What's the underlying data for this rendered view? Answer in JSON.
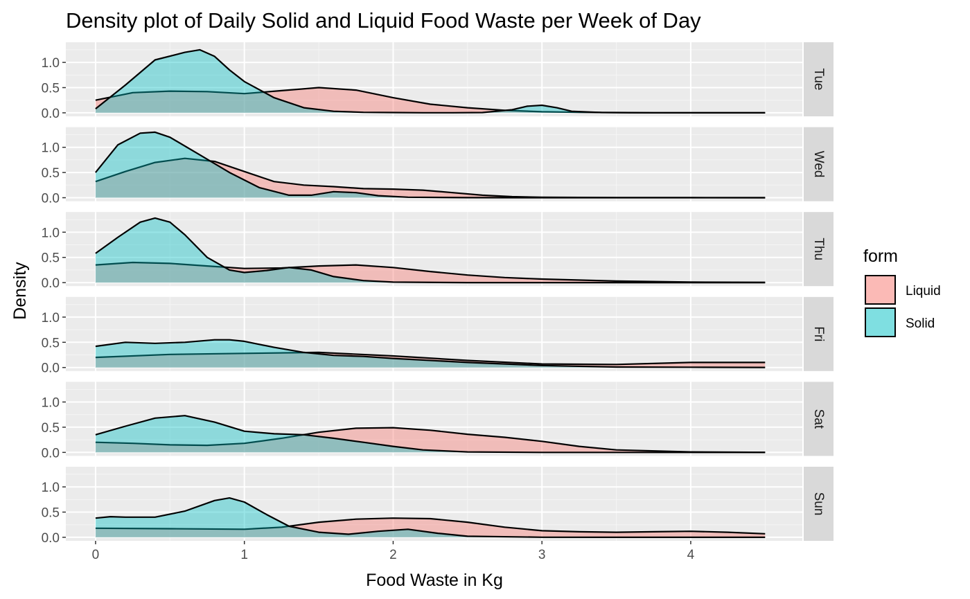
{
  "chart_data": {
    "type": "area",
    "subtype": "faceted density",
    "title": "Density plot of Daily Solid and Liquid Food Waste per Week of Day",
    "xlabel": "Food Waste in Kg",
    "ylabel": "Density",
    "xlim": [
      -0.2,
      4.75
    ],
    "ylim": [
      -0.07,
      1.4
    ],
    "x_ticks": [
      0,
      1,
      2,
      3,
      4
    ],
    "y_ticks": [
      0.0,
      0.5,
      1.0
    ],
    "x_tick_labels": [
      "0",
      "1",
      "2",
      "3",
      "4"
    ],
    "y_tick_labels": [
      "0.0",
      "0.5",
      "1.0"
    ],
    "grid": true,
    "legend": {
      "title": "form",
      "position": "right",
      "entries": [
        {
          "label": "Liquid",
          "color": "#F8766D"
        },
        {
          "label": "Solid",
          "color": "#00BFC4"
        }
      ]
    },
    "fill_alpha": 0.4,
    "panel_background": "#EBEBEB",
    "strip_background": "#D9D9D9",
    "facets": [
      {
        "label": "Tue",
        "series": [
          {
            "name": "Liquid",
            "x": [
              0,
              0.25,
              0.5,
              0.75,
              1,
              1.25,
              1.5,
              1.75,
              2,
              2.25,
              2.5,
              2.75,
              3,
              3.25,
              3.5,
              3.75,
              4,
              4.25,
              4.5
            ],
            "y": [
              0.25,
              0.4,
              0.43,
              0.42,
              0.38,
              0.44,
              0.5,
              0.45,
              0.3,
              0.17,
              0.1,
              0.05,
              0.02,
              0.01,
              0.005,
              0.002,
              0.001,
              0,
              0
            ]
          },
          {
            "name": "Solid",
            "x": [
              0,
              0.2,
              0.4,
              0.6,
              0.7,
              0.8,
              0.9,
              1,
              1.2,
              1.4,
              1.6,
              1.8,
              2,
              2.2,
              2.4,
              2.6,
              2.8,
              2.9,
              3,
              3.1,
              3.2,
              3.4,
              3.6,
              4,
              4.5
            ],
            "y": [
              0.08,
              0.55,
              1.05,
              1.2,
              1.25,
              1.12,
              0.85,
              0.62,
              0.3,
              0.1,
              0.03,
              0.01,
              0.005,
              0.002,
              0.001,
              0.005,
              0.06,
              0.13,
              0.15,
              0.1,
              0.03,
              0.005,
              0.001,
              0,
              0
            ]
          }
        ]
      },
      {
        "label": "Wed",
        "series": [
          {
            "name": "Liquid",
            "x": [
              0,
              0.2,
              0.4,
              0.6,
              0.8,
              1,
              1.2,
              1.4,
              1.6,
              1.8,
              2,
              2.2,
              2.4,
              2.6,
              2.8,
              3,
              3.5,
              4,
              4.5
            ],
            "y": [
              0.32,
              0.52,
              0.7,
              0.78,
              0.72,
              0.52,
              0.32,
              0.25,
              0.22,
              0.18,
              0.17,
              0.15,
              0.1,
              0.05,
              0.02,
              0.01,
              0.003,
              0.001,
              0
            ]
          },
          {
            "name": "Solid",
            "x": [
              0,
              0.15,
              0.3,
              0.4,
              0.5,
              0.7,
              0.9,
              1.1,
              1.3,
              1.45,
              1.6,
              1.75,
              1.9,
              2.1,
              2.5,
              3,
              4,
              4.5
            ],
            "y": [
              0.5,
              1.05,
              1.28,
              1.3,
              1.2,
              0.85,
              0.5,
              0.2,
              0.05,
              0.05,
              0.12,
              0.1,
              0.04,
              0.01,
              0.001,
              0,
              0,
              0
            ]
          }
        ]
      },
      {
        "label": "Thu",
        "series": [
          {
            "name": "Liquid",
            "x": [
              0,
              0.25,
              0.5,
              0.75,
              1,
              1.25,
              1.5,
              1.75,
              2,
              2.25,
              2.5,
              2.75,
              3,
              3.5,
              4,
              4.5
            ],
            "y": [
              0.35,
              0.4,
              0.38,
              0.33,
              0.28,
              0.29,
              0.33,
              0.35,
              0.3,
              0.22,
              0.15,
              0.1,
              0.07,
              0.03,
              0.01,
              0.005
            ]
          },
          {
            "name": "Solid",
            "x": [
              0,
              0.15,
              0.3,
              0.4,
              0.5,
              0.6,
              0.75,
              0.9,
              1,
              1.15,
              1.3,
              1.45,
              1.6,
              1.8,
              2,
              2.5,
              3,
              4,
              4.5
            ],
            "y": [
              0.58,
              0.9,
              1.2,
              1.28,
              1.2,
              0.95,
              0.5,
              0.25,
              0.2,
              0.24,
              0.3,
              0.25,
              0.12,
              0.04,
              0.01,
              0,
              0,
              0,
              0
            ]
          }
        ]
      },
      {
        "label": "Fri",
        "series": [
          {
            "name": "Liquid",
            "x": [
              0,
              0.5,
              1,
              1.5,
              2,
              2.5,
              3,
              3.5,
              4,
              4.5
            ],
            "y": [
              0.2,
              0.26,
              0.28,
              0.3,
              0.23,
              0.14,
              0.07,
              0.06,
              0.1,
              0.1
            ]
          },
          {
            "name": "Solid",
            "x": [
              0,
              0.2,
              0.4,
              0.6,
              0.8,
              0.9,
              1,
              1.2,
              1.4,
              1.6,
              1.8,
              2,
              2.5,
              3,
              3.5,
              4,
              4.5
            ],
            "y": [
              0.42,
              0.5,
              0.48,
              0.5,
              0.55,
              0.55,
              0.52,
              0.4,
              0.3,
              0.24,
              0.22,
              0.18,
              0.1,
              0.04,
              0.01,
              0.005,
              0.002
            ]
          }
        ]
      },
      {
        "label": "Sat",
        "series": [
          {
            "name": "Liquid",
            "x": [
              0,
              0.25,
              0.5,
              0.75,
              1,
              1.25,
              1.5,
              1.75,
              2,
              2.25,
              2.5,
              2.75,
              3,
              3.25,
              3.5,
              4,
              4.5
            ],
            "y": [
              0.2,
              0.18,
              0.15,
              0.14,
              0.18,
              0.28,
              0.4,
              0.48,
              0.49,
              0.44,
              0.36,
              0.3,
              0.22,
              0.12,
              0.05,
              0.01,
              0.002
            ]
          },
          {
            "name": "Solid",
            "x": [
              0,
              0.2,
              0.4,
              0.6,
              0.8,
              1,
              1.2,
              1.4,
              1.6,
              1.8,
              2,
              2.2,
              2.5,
              3,
              3.5,
              4,
              4.5
            ],
            "y": [
              0.35,
              0.52,
              0.68,
              0.73,
              0.6,
              0.42,
              0.37,
              0.35,
              0.28,
              0.2,
              0.12,
              0.05,
              0.01,
              0,
              0,
              0,
              0
            ]
          }
        ]
      },
      {
        "label": "Sun",
        "series": [
          {
            "name": "Liquid",
            "x": [
              0,
              0.5,
              1,
              1.25,
              1.5,
              1.75,
              2,
              2.25,
              2.5,
              2.75,
              3,
              3.25,
              3.5,
              3.75,
              4,
              4.25,
              4.5
            ],
            "y": [
              0.18,
              0.17,
              0.16,
              0.2,
              0.3,
              0.36,
              0.38,
              0.37,
              0.3,
              0.2,
              0.13,
              0.11,
              0.1,
              0.11,
              0.12,
              0.1,
              0.07
            ]
          },
          {
            "name": "Solid",
            "x": [
              0,
              0.1,
              0.2,
              0.4,
              0.6,
              0.8,
              0.9,
              1,
              1.15,
              1.3,
              1.5,
              1.7,
              1.9,
              2.1,
              2.3,
              2.5,
              3,
              4,
              4.5
            ],
            "y": [
              0.38,
              0.41,
              0.4,
              0.4,
              0.52,
              0.73,
              0.78,
              0.7,
              0.45,
              0.22,
              0.1,
              0.06,
              0.12,
              0.16,
              0.08,
              0.02,
              0.001,
              0,
              0
            ]
          }
        ]
      }
    ]
  }
}
